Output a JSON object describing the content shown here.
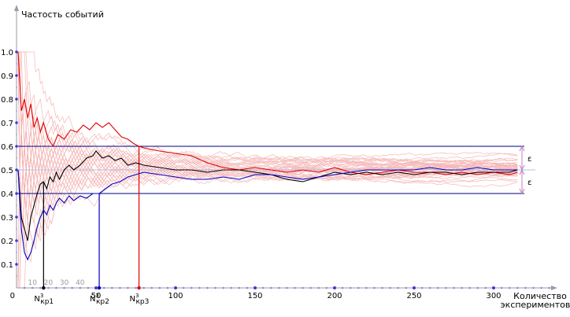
{
  "chart_data": {
    "type": "line",
    "ylabel": "Частость событий",
    "xlabel_line1": "Количество",
    "xlabel_line2": "экспериментов",
    "xlim": [
      0,
      330
    ],
    "ylim": [
      0,
      1.0
    ],
    "grid": false,
    "y_ticks": [
      "0.1",
      "0.2",
      "0.3",
      "0.4",
      "0.5",
      "0.6",
      "0.7",
      "0.8",
      "0.9",
      "1.0"
    ],
    "x_ticks": [
      "0",
      "50",
      "100",
      "150",
      "200",
      "250",
      "300"
    ],
    "x_minor_labels": [
      "10",
      "20",
      "30",
      "40"
    ],
    "p": 0.5,
    "epsilon": 0.1,
    "epsilon_label": "ε",
    "critical_points": [
      {
        "x": 17,
        "label": "N",
        "sup": "3",
        "sub": "кр1",
        "color": "#000000"
      },
      {
        "x": 52,
        "label": "N",
        "sup": "3",
        "sub": "кр2",
        "color": "#0000c0"
      },
      {
        "x": 77,
        "label": "N",
        "sup": "3",
        "sub": "кр3",
        "color": "#e00000"
      }
    ],
    "colors": {
      "background_runs": "#f4b4b4",
      "series_red": "#e00000",
      "series_black": "#000000",
      "series_blue": "#0000c0",
      "band": "#000080",
      "axis": "#9a9aa8",
      "axis_dots": "#7c7cdc",
      "epsilon_marker": "#c080c0"
    },
    "series": [
      {
        "color": "#e00000",
        "points": [
          [
            1,
            1.0
          ],
          [
            3,
            0.75
          ],
          [
            5,
            0.8
          ],
          [
            7,
            0.72
          ],
          [
            9,
            0.78
          ],
          [
            11,
            0.68
          ],
          [
            13,
            0.72
          ],
          [
            15,
            0.66
          ],
          [
            17,
            0.7
          ],
          [
            20,
            0.63
          ],
          [
            23,
            0.6
          ],
          [
            26,
            0.65
          ],
          [
            30,
            0.63
          ],
          [
            34,
            0.67
          ],
          [
            38,
            0.66
          ],
          [
            42,
            0.69
          ],
          [
            46,
            0.67
          ],
          [
            50,
            0.7
          ],
          [
            54,
            0.68
          ],
          [
            58,
            0.7
          ],
          [
            62,
            0.67
          ],
          [
            66,
            0.64
          ],
          [
            70,
            0.63
          ],
          [
            74,
            0.61
          ],
          [
            77,
            0.6
          ],
          [
            82,
            0.59
          ],
          [
            90,
            0.58
          ],
          [
            100,
            0.57
          ],
          [
            110,
            0.56
          ],
          [
            120,
            0.53
          ],
          [
            130,
            0.51
          ],
          [
            140,
            0.5
          ],
          [
            150,
            0.51
          ],
          [
            160,
            0.5
          ],
          [
            170,
            0.49
          ],
          [
            180,
            0.5
          ],
          [
            190,
            0.49
          ],
          [
            200,
            0.51
          ],
          [
            210,
            0.49
          ],
          [
            220,
            0.48
          ],
          [
            230,
            0.49
          ],
          [
            240,
            0.5
          ],
          [
            250,
            0.49
          ],
          [
            260,
            0.49
          ],
          [
            270,
            0.48
          ],
          [
            280,
            0.49
          ],
          [
            290,
            0.48
          ],
          [
            300,
            0.49
          ],
          [
            310,
            0.48
          ],
          [
            315,
            0.49
          ]
        ]
      },
      {
        "color": "#000000",
        "points": [
          [
            1,
            0.5
          ],
          [
            3,
            0.3
          ],
          [
            5,
            0.25
          ],
          [
            7,
            0.2
          ],
          [
            9,
            0.3
          ],
          [
            11,
            0.35
          ],
          [
            13,
            0.4
          ],
          [
            15,
            0.44
          ],
          [
            17,
            0.45
          ],
          [
            19,
            0.42
          ],
          [
            21,
            0.47
          ],
          [
            23,
            0.45
          ],
          [
            25,
            0.49
          ],
          [
            27,
            0.46
          ],
          [
            30,
            0.5
          ],
          [
            33,
            0.52
          ],
          [
            36,
            0.5
          ],
          [
            40,
            0.52
          ],
          [
            44,
            0.55
          ],
          [
            48,
            0.56
          ],
          [
            50,
            0.58
          ],
          [
            54,
            0.55
          ],
          [
            58,
            0.56
          ],
          [
            62,
            0.54
          ],
          [
            66,
            0.55
          ],
          [
            70,
            0.52
          ],
          [
            75,
            0.53
          ],
          [
            80,
            0.52
          ],
          [
            90,
            0.51
          ],
          [
            100,
            0.5
          ],
          [
            110,
            0.5
          ],
          [
            120,
            0.49
          ],
          [
            130,
            0.5
          ],
          [
            140,
            0.5
          ],
          [
            150,
            0.49
          ],
          [
            160,
            0.48
          ],
          [
            170,
            0.46
          ],
          [
            180,
            0.45
          ],
          [
            190,
            0.47
          ],
          [
            200,
            0.49
          ],
          [
            210,
            0.48
          ],
          [
            220,
            0.49
          ],
          [
            230,
            0.48
          ],
          [
            240,
            0.49
          ],
          [
            250,
            0.48
          ],
          [
            260,
            0.49
          ],
          [
            270,
            0.49
          ],
          [
            280,
            0.48
          ],
          [
            290,
            0.49
          ],
          [
            300,
            0.49
          ],
          [
            310,
            0.49
          ],
          [
            315,
            0.5
          ]
        ]
      },
      {
        "color": "#0000c0",
        "points": [
          [
            1,
            0.5
          ],
          [
            3,
            0.25
          ],
          [
            5,
            0.15
          ],
          [
            7,
            0.12
          ],
          [
            9,
            0.15
          ],
          [
            11,
            0.2
          ],
          [
            13,
            0.26
          ],
          [
            15,
            0.3
          ],
          [
            17,
            0.33
          ],
          [
            19,
            0.31
          ],
          [
            21,
            0.35
          ],
          [
            23,
            0.33
          ],
          [
            25,
            0.36
          ],
          [
            27,
            0.38
          ],
          [
            30,
            0.36
          ],
          [
            33,
            0.39
          ],
          [
            36,
            0.37
          ],
          [
            40,
            0.39
          ],
          [
            44,
            0.38
          ],
          [
            48,
            0.4
          ],
          [
            52,
            0.4
          ],
          [
            56,
            0.42
          ],
          [
            60,
            0.44
          ],
          [
            65,
            0.45
          ],
          [
            70,
            0.47
          ],
          [
            75,
            0.48
          ],
          [
            80,
            0.49
          ],
          [
            90,
            0.48
          ],
          [
            100,
            0.47
          ],
          [
            110,
            0.46
          ],
          [
            120,
            0.46
          ],
          [
            130,
            0.47
          ],
          [
            140,
            0.46
          ],
          [
            150,
            0.48
          ],
          [
            160,
            0.48
          ],
          [
            170,
            0.47
          ],
          [
            180,
            0.46
          ],
          [
            190,
            0.47
          ],
          [
            200,
            0.48
          ],
          [
            210,
            0.49
          ],
          [
            220,
            0.5
          ],
          [
            230,
            0.5
          ],
          [
            240,
            0.5
          ],
          [
            250,
            0.5
          ],
          [
            260,
            0.51
          ],
          [
            270,
            0.5
          ],
          [
            280,
            0.5
          ],
          [
            290,
            0.51
          ],
          [
            300,
            0.5
          ],
          [
            310,
            0.5
          ],
          [
            315,
            0.5
          ]
        ]
      }
    ]
  }
}
